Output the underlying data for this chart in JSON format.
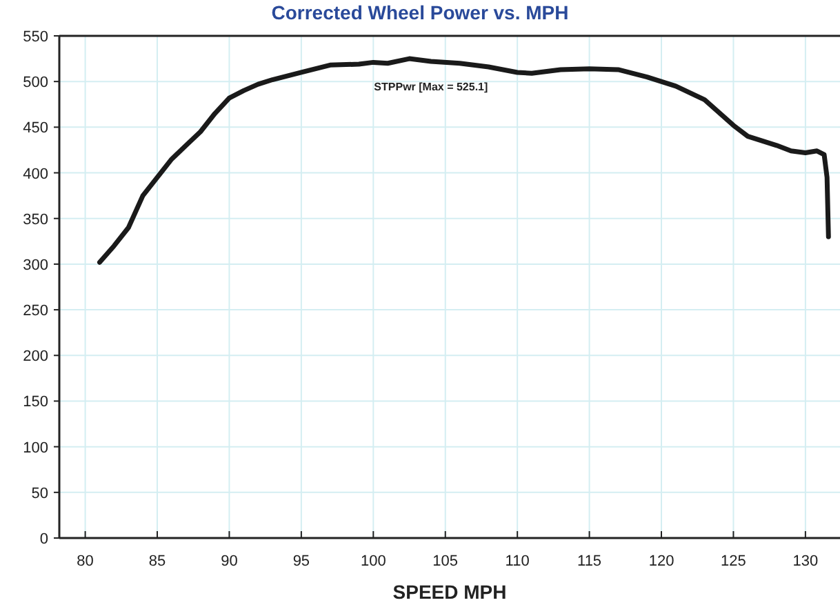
{
  "chart_data": {
    "type": "line",
    "title": "Corrected Wheel Power vs. MPH",
    "xlabel": "SPEED MPH",
    "xlim": [
      78.2,
      132.4
    ],
    "xticks": [
      80,
      85,
      90,
      95,
      100,
      105,
      110,
      115,
      120,
      125,
      130
    ],
    "ylim": [
      0,
      550
    ],
    "yticks": [
      0,
      50,
      100,
      150,
      200,
      250,
      300,
      350,
      400,
      450,
      500,
      550
    ],
    "grid": true,
    "x": [
      81,
      82,
      83,
      84,
      85,
      86,
      87,
      88,
      89,
      90,
      91,
      92,
      93,
      95,
      97,
      99,
      100,
      101,
      102.5,
      104,
      106,
      108,
      110,
      111,
      113,
      115,
      117,
      119,
      121,
      123,
      125,
      126,
      128,
      129,
      130,
      130.8,
      131.3,
      131.5,
      131.6
    ],
    "series": [
      {
        "name": "STPPwr [Max = 525.1]",
        "color": "#1a1a1a",
        "values": [
          302,
          320,
          340,
          375,
          395,
          415,
          430,
          445,
          465,
          482,
          490,
          497,
          502,
          510,
          518,
          519,
          521,
          520,
          525,
          522,
          520,
          516,
          510,
          509,
          513,
          514,
          513,
          505,
          495,
          480,
          452,
          440,
          430,
          424,
          422,
          424,
          420,
          395,
          330
        ]
      }
    ]
  }
}
